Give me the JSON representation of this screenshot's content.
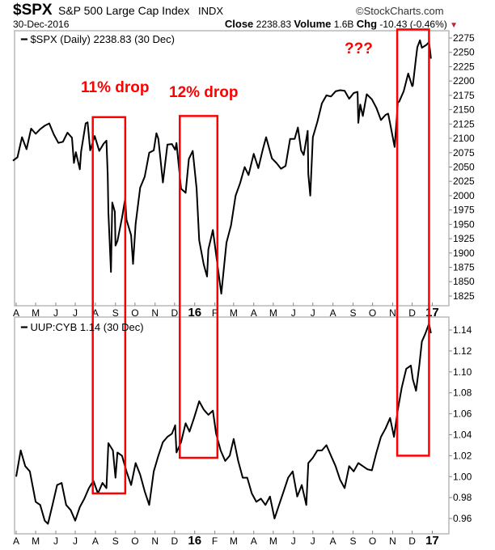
{
  "header": {
    "symbol": "$SPX",
    "name": "S&P 500 Large Cap Index",
    "exchange": "INDX",
    "brand": "©StockCharts.com",
    "date": "30-Dec-2016",
    "close_label": "Close",
    "close_value": "2238.83",
    "volume_label": "Volume",
    "volume_value": "1.6B",
    "chg_label": "Chg",
    "chg_value": "-10.43 (-0.46%)",
    "chg_icon": "triangle-down-icon",
    "chg_color": "#c0203a"
  },
  "chart_data": [
    {
      "type": "line",
      "legend": "$SPX (Daily) 2238.83 (30 Dec)",
      "ylim": [
        1815,
        2285
      ],
      "yticks": [
        2275,
        2250,
        2225,
        2200,
        2175,
        2150,
        2125,
        2100,
        2075,
        2050,
        2025,
        2000,
        1975,
        1950,
        1925,
        1900,
        1875,
        1850,
        1825
      ],
      "axis_side": "right",
      "grid": false,
      "line_color": "#000000",
      "x": [
        "2015-03-27",
        "2015-04-03",
        "2015-04-10",
        "2015-04-17",
        "2015-04-24",
        "2015-05-01",
        "2015-05-08",
        "2015-05-15",
        "2015-05-22",
        "2015-05-29",
        "2015-06-05",
        "2015-06-12",
        "2015-06-19",
        "2015-06-26",
        "2015-06-29",
        "2015-07-02",
        "2015-07-08",
        "2015-07-10",
        "2015-07-17",
        "2015-07-20",
        "2015-07-24",
        "2015-07-31",
        "2015-08-07",
        "2015-08-14",
        "2015-08-18",
        "2015-08-20",
        "2015-08-21",
        "2015-08-24",
        "2015-08-25",
        "2015-08-27",
        "2015-08-31",
        "2015-09-01",
        "2015-09-04",
        "2015-09-11",
        "2015-09-16",
        "2015-09-18",
        "2015-09-25",
        "2015-09-28",
        "2015-10-02",
        "2015-10-09",
        "2015-10-16",
        "2015-10-23",
        "2015-10-30",
        "2015-11-03",
        "2015-11-06",
        "2015-11-13",
        "2015-11-20",
        "2015-11-27",
        "2015-12-02",
        "2015-12-04",
        "2015-12-11",
        "2015-12-18",
        "2015-12-23",
        "2015-12-29",
        "2016-01-04",
        "2016-01-08",
        "2016-01-15",
        "2016-01-20",
        "2016-01-22",
        "2016-01-29",
        "2016-02-05",
        "2016-02-11",
        "2016-02-19",
        "2016-02-26",
        "2016-03-04",
        "2016-03-11",
        "2016-03-18",
        "2016-03-24",
        "2016-04-01",
        "2016-04-08",
        "2016-04-15",
        "2016-04-20",
        "2016-04-29",
        "2016-05-06",
        "2016-05-13",
        "2016-05-20",
        "2016-05-27",
        "2016-06-03",
        "2016-06-08",
        "2016-06-13",
        "2016-06-17",
        "2016-06-23",
        "2016-06-24",
        "2016-06-27",
        "2016-07-01",
        "2016-07-08",
        "2016-07-15",
        "2016-07-22",
        "2016-07-29",
        "2016-08-05",
        "2016-08-12",
        "2016-08-19",
        "2016-08-26",
        "2016-09-02",
        "2016-09-08",
        "2016-09-09",
        "2016-09-12",
        "2016-09-16",
        "2016-09-22",
        "2016-09-30",
        "2016-10-07",
        "2016-10-14",
        "2016-10-21",
        "2016-10-25",
        "2016-10-28",
        "2016-11-04",
        "2016-11-07",
        "2016-11-09",
        "2016-11-11",
        "2016-11-18",
        "2016-11-25",
        "2016-12-01",
        "2016-12-02",
        "2016-12-07",
        "2016-12-09",
        "2016-12-13",
        "2016-12-16",
        "2016-12-23",
        "2016-12-27",
        "2016-12-29",
        "2016-12-30"
      ],
      "values": [
        2061,
        2067,
        2102,
        2081,
        2117,
        2108,
        2116,
        2122,
        2126,
        2107,
        2092,
        2094,
        2110,
        2101,
        2057,
        2076,
        2046,
        2077,
        2126,
        2128,
        2079,
        2104,
        2078,
        2091,
        2096,
        2035,
        1971,
        1893,
        1867,
        1988,
        1972,
        1913,
        1921,
        1961,
        1995,
        1958,
        1931,
        1881,
        1951,
        2014,
        2033,
        2075,
        2079,
        2109,
        2099,
        2023,
        2089,
        2090,
        2080,
        2092,
        2012,
        2005,
        2064,
        2078,
        2012,
        1922,
        1880,
        1859,
        1906,
        1940,
        1880,
        1829,
        1918,
        1948,
        2000,
        2022,
        2050,
        2036,
        2073,
        2048,
        2081,
        2102,
        2065,
        2057,
        2047,
        2052,
        2099,
        2099,
        2119,
        2079,
        2071,
        2113,
        2037,
        2000,
        2102,
        2129,
        2161,
        2175,
        2173,
        2182,
        2184,
        2183,
        2169,
        2179,
        2181,
        2127,
        2159,
        2139,
        2177,
        2168,
        2153,
        2132,
        2141,
        2143,
        2126,
        2085,
        2131,
        2163,
        2164,
        2182,
        2213,
        2191,
        2192,
        2241,
        2259,
        2271,
        2258,
        2263,
        2268,
        2250,
        2239
      ]
    },
    {
      "type": "line",
      "legend": "UUP:CYB 1.14 (30 Dec)",
      "ylim": [
        0.946,
        1.15
      ],
      "yticks": [
        "1.14",
        "1.12",
        "1.10",
        "1.08",
        "1.06",
        "1.04",
        "1.02",
        "1.00",
        "0.98",
        "0.96"
      ],
      "axis_side": "right",
      "grid": false,
      "line_color": "#000000",
      "x": [
        "2015-04-01",
        "2015-04-08",
        "2015-04-15",
        "2015-04-22",
        "2015-05-01",
        "2015-05-08",
        "2015-05-15",
        "2015-05-20",
        "2015-05-27",
        "2015-06-03",
        "2015-06-10",
        "2015-06-17",
        "2015-06-24",
        "2015-07-01",
        "2015-07-08",
        "2015-07-15",
        "2015-07-22",
        "2015-07-29",
        "2015-08-05",
        "2015-08-12",
        "2015-08-18",
        "2015-08-21",
        "2015-08-28",
        "2015-09-01",
        "2015-09-04",
        "2015-09-11",
        "2015-09-18",
        "2015-09-25",
        "2015-10-02",
        "2015-10-09",
        "2015-10-16",
        "2015-10-23",
        "2015-10-30",
        "2015-11-06",
        "2015-11-13",
        "2015-11-20",
        "2015-11-27",
        "2015-12-02",
        "2015-12-04",
        "2015-12-11",
        "2015-12-18",
        "2015-12-24",
        "2015-12-31",
        "2016-01-08",
        "2016-01-15",
        "2016-01-22",
        "2016-01-29",
        "2016-02-03",
        "2016-02-10",
        "2016-02-17",
        "2016-02-24",
        "2016-03-01",
        "2016-03-08",
        "2016-03-15",
        "2016-03-22",
        "2016-03-29",
        "2016-04-05",
        "2016-04-12",
        "2016-04-19",
        "2016-04-26",
        "2016-05-03",
        "2016-05-10",
        "2016-05-17",
        "2016-05-24",
        "2016-05-31",
        "2016-06-07",
        "2016-06-14",
        "2016-06-21",
        "2016-06-24",
        "2016-07-01",
        "2016-07-08",
        "2016-07-15",
        "2016-07-22",
        "2016-07-29",
        "2016-08-05",
        "2016-08-12",
        "2016-08-19",
        "2016-08-26",
        "2016-09-02",
        "2016-09-09",
        "2016-09-16",
        "2016-09-23",
        "2016-09-30",
        "2016-10-07",
        "2016-10-14",
        "2016-10-21",
        "2016-10-28",
        "2016-11-03",
        "2016-11-09",
        "2016-11-15",
        "2016-11-22",
        "2016-11-29",
        "2016-12-02",
        "2016-12-07",
        "2016-12-12",
        "2016-12-16",
        "2016-12-21",
        "2016-12-27",
        "2016-12-30"
      ],
      "values": [
        1.0,
        1.025,
        1.01,
        1.005,
        0.976,
        0.973,
        0.958,
        0.955,
        0.973,
        0.992,
        0.994,
        0.973,
        0.968,
        0.958,
        0.971,
        0.979,
        0.989,
        0.996,
        0.984,
        0.994,
        0.989,
        1.032,
        1.025,
        0.999,
        1.023,
        1.02,
        1.005,
        0.992,
        1.013,
        1.002,
        0.986,
        0.973,
        1.005,
        1.02,
        1.033,
        1.038,
        1.041,
        1.049,
        1.023,
        1.033,
        1.051,
        1.043,
        1.056,
        1.072,
        1.064,
        1.059,
        1.063,
        1.041,
        1.025,
        1.015,
        1.02,
        1.036,
        1.015,
        0.999,
        0.999,
        0.984,
        0.976,
        0.979,
        0.973,
        0.981,
        0.96,
        0.973,
        0.986,
        0.999,
        1.005,
        0.981,
        0.992,
        0.973,
        1.013,
        1.018,
        1.025,
        1.025,
        1.03,
        1.02,
        1.01,
        0.997,
        0.989,
        1.01,
        1.005,
        1.013,
        1.01,
        1.007,
        1.006,
        1.023,
        1.038,
        1.046,
        1.056,
        1.038,
        1.064,
        1.085,
        1.103,
        1.106,
        1.093,
        1.082,
        1.106,
        1.129,
        1.136,
        1.146,
        1.137
      ]
    }
  ],
  "x_axis": {
    "labels": [
      "A",
      "M",
      "J",
      "J",
      "A",
      "S",
      "O",
      "N",
      "D",
      "16",
      "F",
      "M",
      "A",
      "M",
      "J",
      "J",
      "A",
      "S",
      "O",
      "N",
      "D",
      "17"
    ],
    "bold_labels": [
      "16",
      "17"
    ],
    "first_month": "2015-04-01"
  },
  "annotations": {
    "color": "#ff0000",
    "texts": [
      {
        "text": "11% drop"
      },
      {
        "text": "12% drop"
      },
      {
        "text": "???"
      }
    ],
    "boxes": [
      {
        "x_start": "2015-07-28",
        "x_end": "2015-09-16",
        "spx_top": 2137,
        "uup_bottom": 0.984
      },
      {
        "x_start": "2015-12-09",
        "x_end": "2016-02-05",
        "spx_top": 2139,
        "uup_bottom": 1.018
      },
      {
        "x_start": "2016-11-08",
        "x_end": "2016-12-27",
        "spx_top": 2290,
        "uup_bottom": 1.02
      }
    ]
  }
}
